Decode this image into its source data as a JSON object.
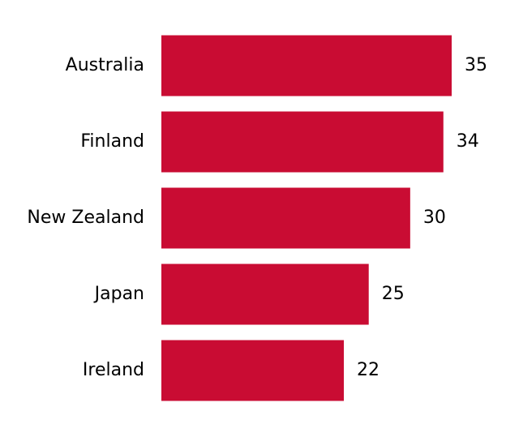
{
  "chart_data": {
    "type": "bar",
    "orientation": "horizontal",
    "categories": [
      "Australia",
      "Finland",
      "New Zealand",
      "Japan",
      "Ireland"
    ],
    "values": [
      35,
      34,
      30,
      25,
      22
    ],
    "color": "#c90c33",
    "data_labels": true
  }
}
